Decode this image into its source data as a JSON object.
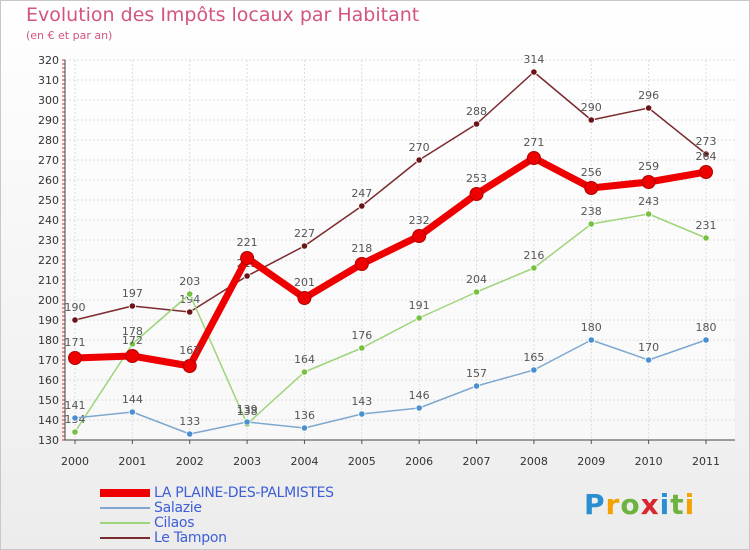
{
  "header": {
    "title": "Evolution des Impôts locaux par Habitant",
    "subtitle": "(en € et par an)"
  },
  "logo": {
    "letters": [
      "P",
      "r",
      "o",
      "x",
      "i",
      "t",
      "i"
    ],
    "colors": [
      "#2a8fd0",
      "#f3a200",
      "#6db33f",
      "#d7262d",
      "#2a8fd0",
      "#6db33f",
      "#f3a200"
    ]
  },
  "chart_data": {
    "type": "line",
    "title": "Evolution des Impôts locaux par Habitant",
    "subtitle": "(en € et par an)",
    "xlabel": "",
    "ylabel": "",
    "x": [
      "2000",
      "2001",
      "2002",
      "2003",
      "2004",
      "2005",
      "2006",
      "2007",
      "2008",
      "2009",
      "2010",
      "2011"
    ],
    "ylim": [
      130,
      320
    ],
    "yticks": [
      130,
      140,
      150,
      160,
      170,
      180,
      190,
      200,
      210,
      220,
      230,
      240,
      250,
      260,
      270,
      280,
      290,
      300,
      310,
      320
    ],
    "grid": true,
    "legend_position": "bottom-left",
    "series": [
      {
        "name": "Le Tampon",
        "color": "#7b2a2f",
        "marker": "#6b1418",
        "values": [
          190,
          197,
          194,
          212,
          227,
          247,
          270,
          288,
          314,
          290,
          296,
          273
        ],
        "labels": [
          "190",
          "197",
          "194",
          "212",
          "227",
          "247",
          "270",
          "288",
          "314",
          "290",
          "296",
          "273"
        ]
      },
      {
        "name": "Cilaos",
        "color": "#9ed47a",
        "marker": "#77c142",
        "values": [
          134,
          178,
          203,
          138,
          164,
          176,
          191,
          204,
          216,
          238,
          243,
          231
        ],
        "labels": [
          "134",
          "178",
          "203",
          "138",
          "164",
          "176",
          "191",
          "204",
          "216",
          "238",
          "243",
          "231"
        ]
      },
      {
        "name": "Salazie",
        "color": "#7ea8cf",
        "marker": "#4a90d0",
        "values": [
          141,
          144,
          133,
          139,
          136,
          143,
          146,
          157,
          165,
          180,
          170,
          180
        ],
        "labels": [
          "141",
          "144",
          "133",
          "139",
          "136",
          "143",
          "146",
          "157",
          "165",
          "180",
          "170",
          "180"
        ]
      },
      {
        "name": "LA PLAINE-DES-PALMISTES",
        "color": "#ee0000",
        "marker": "#ee0000",
        "values": [
          171,
          172,
          167,
          221,
          201,
          218,
          232,
          253,
          271,
          256,
          259,
          264
        ],
        "labels": [
          "171",
          "172",
          "167",
          "221",
          "201",
          "218",
          "232",
          "253",
          "271",
          "256",
          "259",
          "264"
        ]
      }
    ]
  },
  "legend": [
    {
      "label": "LA PLAINE-DES-PALMISTES",
      "color": "#ee0000",
      "thickness": 8
    },
    {
      "label": "Salazie",
      "color": "#7ea8cf",
      "thickness": 2
    },
    {
      "label": "Cilaos",
      "color": "#9ed47a",
      "thickness": 2
    },
    {
      "label": "Le Tampon",
      "color": "#7b2a2f",
      "thickness": 2
    }
  ]
}
